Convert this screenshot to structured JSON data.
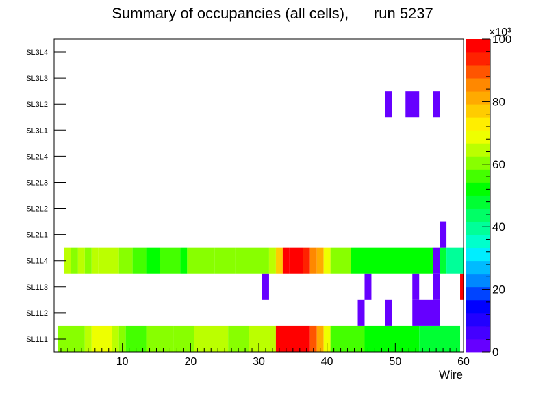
{
  "chart_data": {
    "type": "heatmap",
    "title": "Summary of occupancies (all cells),      run 5237",
    "xlabel": "Wire",
    "ylabel": "",
    "x_range": [
      0,
      60
    ],
    "x_ticks": [
      10,
      20,
      30,
      40,
      50,
      60
    ],
    "row_labels": [
      "SL1L1",
      "SL1L2",
      "SL1L3",
      "SL1L4",
      "SL2L1",
      "SL2L2",
      "SL2L3",
      "SL2L4",
      "SL3L1",
      "SL3L2",
      "SL3L3",
      "SL3L4"
    ],
    "z_range": [
      0,
      100000
    ],
    "z_multiplier": "×10³",
    "z_ticks": [
      0,
      20,
      40,
      60,
      80,
      100
    ],
    "palette": [
      "#6600ff",
      "#4400ff",
      "#2200ff",
      "#0000ff",
      "#0044ff",
      "#0088ff",
      "#00bbff",
      "#00eeff",
      "#00ffcc",
      "#00ff99",
      "#00ff66",
      "#00ff33",
      "#00ff00",
      "#44ff00",
      "#88ff00",
      "#bbff00",
      "#eeff00",
      "#ffee00",
      "#ffcc00",
      "#ffaa00",
      "#ff8800",
      "#ff5500",
      "#ff2200",
      "#ff0000"
    ],
    "rows": {
      "SL1L1": [
        [
          1,
          4,
          62000
        ],
        [
          5,
          5,
          66000
        ],
        [
          6,
          8,
          68000
        ],
        [
          9,
          9,
          65000
        ],
        [
          10,
          10,
          60000
        ],
        [
          11,
          13,
          58000
        ],
        [
          14,
          15,
          62000
        ],
        [
          16,
          17,
          59000
        ],
        [
          18,
          20,
          61000
        ],
        [
          21,
          25,
          64000
        ],
        [
          26,
          28,
          60000
        ],
        [
          29,
          32,
          63000
        ],
        [
          33,
          36,
          99000
        ],
        [
          37,
          37,
          96000
        ],
        [
          38,
          38,
          88000
        ],
        [
          39,
          39,
          80000
        ],
        [
          40,
          40,
          70000
        ],
        [
          41,
          45,
          58000
        ],
        [
          46,
          53,
          52000
        ],
        [
          54,
          59,
          47000
        ]
      ],
      "SL1L2": [
        [
          45,
          45,
          3000
        ],
        [
          49,
          49,
          3000
        ],
        [
          53,
          56,
          3000
        ]
      ],
      "SL1L3": [
        [
          31,
          31,
          3000
        ],
        [
          46,
          46,
          3000
        ],
        [
          53,
          53,
          3000
        ],
        [
          56,
          56,
          3000
        ],
        [
          60,
          60,
          99000
        ]
      ],
      "SL1L4": [
        [
          2,
          2,
          66000
        ],
        [
          3,
          3,
          62000
        ],
        [
          4,
          4,
          65000
        ],
        [
          5,
          5,
          60000
        ],
        [
          6,
          6,
          64000
        ],
        [
          7,
          9,
          66000
        ],
        [
          10,
          11,
          62000
        ],
        [
          12,
          13,
          57000
        ],
        [
          14,
          15,
          54000
        ],
        [
          16,
          18,
          58000
        ],
        [
          19,
          19,
          54000
        ],
        [
          20,
          23,
          60000
        ],
        [
          24,
          26,
          59000
        ],
        [
          27,
          28,
          60000
        ],
        [
          29,
          31,
          61000
        ],
        [
          32,
          32,
          64000
        ],
        [
          33,
          33,
          78000
        ],
        [
          34,
          34,
          98000
        ],
        [
          35,
          36,
          97000
        ],
        [
          37,
          37,
          94000
        ],
        [
          38,
          38,
          87000
        ],
        [
          39,
          39,
          80000
        ],
        [
          40,
          40,
          68000
        ],
        [
          41,
          43,
          60000
        ],
        [
          44,
          48,
          52000
        ],
        [
          49,
          55,
          50000
        ],
        [
          56,
          56,
          3000
        ],
        [
          57,
          57,
          47000
        ],
        [
          58,
          61,
          40000
        ]
      ],
      "SL2L1": [
        [
          57,
          57,
          3000
        ]
      ],
      "SL3L2": [
        [
          49,
          49,
          3000
        ],
        [
          52,
          53,
          3000
        ],
        [
          56,
          56,
          3000
        ]
      ]
    }
  }
}
